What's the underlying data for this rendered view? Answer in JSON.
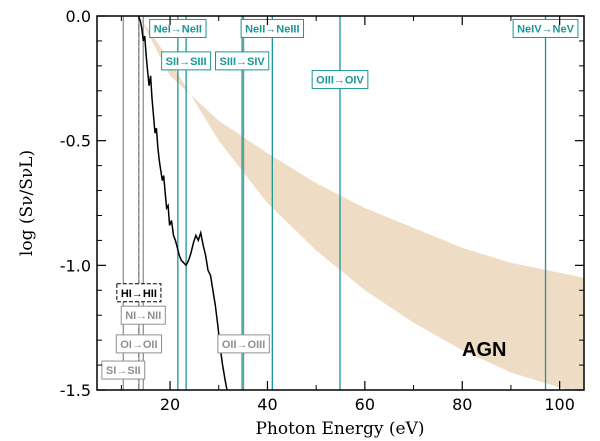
{
  "chart_data": {
    "type": "line",
    "xlabel": "Photon Energy (eV)",
    "ylabel": "log (Sν/SνL)",
    "xlim": [
      5,
      105
    ],
    "ylim": [
      -1.5,
      0.0
    ],
    "x_ticks": [
      20,
      40,
      60,
      80,
      100
    ],
    "y_ticks": [
      0.0,
      -0.5,
      -1.0,
      -1.5
    ],
    "x_tick_labels": [
      "20",
      "40",
      "60",
      "80",
      "100"
    ],
    "y_tick_labels": [
      "0.0",
      "-0.5",
      "-1.0",
      "-1.5"
    ],
    "grid": false,
    "colors": {
      "band": "#efdcc4",
      "teal": "#1a9696",
      "gray": "#909090",
      "spectrum": "#000000"
    },
    "agn_band": {
      "label": "AGN",
      "upper": [
        [
          13.6,
          0.0
        ],
        [
          20,
          -0.24
        ],
        [
          30,
          -0.42
        ],
        [
          40,
          -0.55
        ],
        [
          50,
          -0.67
        ],
        [
          60,
          -0.77
        ],
        [
          70,
          -0.85
        ],
        [
          80,
          -0.93
        ],
        [
          90,
          -0.99
        ],
        [
          105,
          -1.05
        ]
      ],
      "lower": [
        [
          13.6,
          0.0
        ],
        [
          20,
          -0.18
        ],
        [
          30,
          -0.5
        ],
        [
          40,
          -0.75
        ],
        [
          50,
          -0.94
        ],
        [
          60,
          -1.1
        ],
        [
          70,
          -1.23
        ],
        [
          80,
          -1.34
        ],
        [
          90,
          -1.43
        ],
        [
          100,
          -1.49
        ],
        [
          105,
          -1.52
        ]
      ]
    },
    "spectrum": [
      [
        13.5,
        0.0
      ],
      [
        13.9,
        -0.02
      ],
      [
        14.2,
        -0.05
      ],
      [
        14.5,
        -0.1
      ],
      [
        14.8,
        -0.08
      ],
      [
        15.1,
        -0.16
      ],
      [
        15.4,
        -0.22
      ],
      [
        15.7,
        -0.28
      ],
      [
        16.0,
        -0.24
      ],
      [
        16.3,
        -0.33
      ],
      [
        16.6,
        -0.4
      ],
      [
        16.9,
        -0.47
      ],
      [
        17.2,
        -0.45
      ],
      [
        17.5,
        -0.53
      ],
      [
        17.8,
        -0.58
      ],
      [
        18.1,
        -0.62
      ],
      [
        18.4,
        -0.66
      ],
      [
        18.7,
        -0.64
      ],
      [
        19.0,
        -0.71
      ],
      [
        19.3,
        -0.77
      ],
      [
        19.6,
        -0.76
      ],
      [
        19.9,
        -0.84
      ],
      [
        20.3,
        -0.82
      ],
      [
        20.7,
        -0.88
      ],
      [
        21.1,
        -0.9
      ],
      [
        21.5,
        -0.93
      ],
      [
        21.9,
        -0.96
      ],
      [
        22.3,
        -0.98
      ],
      [
        22.8,
        -0.99
      ],
      [
        23.3,
        -1.0
      ],
      [
        23.8,
        -0.98
      ],
      [
        24.3,
        -0.95
      ],
      [
        24.8,
        -0.91
      ],
      [
        25.3,
        -0.88
      ],
      [
        25.8,
        -0.9
      ],
      [
        26.3,
        -0.87
      ],
      [
        26.8,
        -0.92
      ],
      [
        27.3,
        -0.96
      ],
      [
        27.8,
        -1.02
      ],
      [
        28.3,
        -1.04
      ],
      [
        28.8,
        -1.1
      ],
      [
        29.3,
        -1.16
      ],
      [
        29.8,
        -1.24
      ],
      [
        30.3,
        -1.33
      ],
      [
        30.8,
        -1.4
      ],
      [
        31.3,
        -1.46
      ],
      [
        31.7,
        -1.5
      ]
    ],
    "lines": [
      {
        "label": "HI→HII",
        "x": 13.6,
        "style": "dashed",
        "color": "black",
        "label_y": -1.11
      },
      {
        "label": "NI→NII",
        "x": 14.5,
        "style": "solid",
        "color": "gray",
        "label_y": -1.2
      },
      {
        "label": "OI→OII",
        "x": 13.6,
        "style": "solid",
        "color": "gray",
        "label_y": -1.315
      },
      {
        "label": "SI→SII",
        "x": 10.4,
        "style": "solid",
        "color": "gray",
        "label_y": -1.42
      },
      {
        "label": "NeI→NeII",
        "x": 21.6,
        "style": "solid",
        "color": "teal",
        "label_y": -0.05
      },
      {
        "label": "SII→SIII",
        "x": 23.3,
        "style": "solid",
        "color": "teal",
        "label_y": -0.18
      },
      {
        "label": "SIII→SIV",
        "x": 34.8,
        "style": "solid",
        "color": "teal",
        "label_y": -0.18
      },
      {
        "label": "OII→OIII",
        "x": 35.1,
        "style": "solid",
        "color": "gray",
        "label_y": -1.315
      },
      {
        "label": "NeII→NeIII",
        "x": 41.0,
        "style": "solid",
        "color": "teal",
        "label_y": -0.05
      },
      {
        "label": "OIII→OIV",
        "x": 54.9,
        "style": "solid",
        "color": "teal",
        "label_y": -0.255
      },
      {
        "label": "NeIV→NeV",
        "x": 97.1,
        "style": "solid",
        "color": "teal",
        "label_y": -0.05
      }
    ]
  }
}
